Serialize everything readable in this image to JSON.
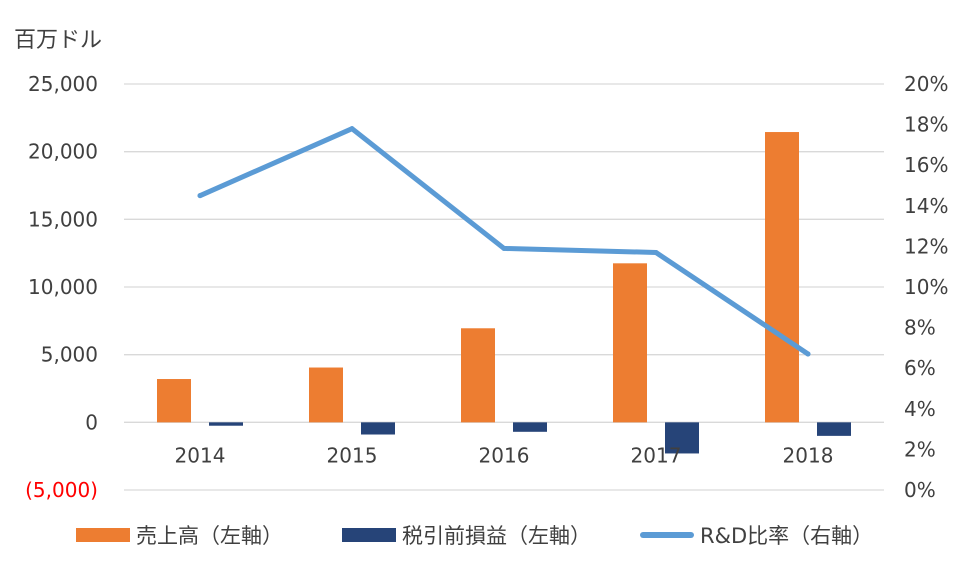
{
  "unit_label": "百万ドル",
  "colors": {
    "sales": "#ED7D31",
    "pretax": "#264478",
    "rd": "#5B9BD5",
    "grid": "#D9D9D9",
    "text": "#404040",
    "negative": "#FF0000"
  },
  "chart_data": {
    "type": "bar",
    "categories": [
      "2014",
      "2015",
      "2016",
      "2017",
      "2018"
    ],
    "series": [
      {
        "name": "売上高（左軸）",
        "type": "bar",
        "axis": "left",
        "values": [
          3200,
          4050,
          6950,
          11750,
          21450
        ]
      },
      {
        "name": "税引前損益（左軸）",
        "type": "bar",
        "axis": "left",
        "values": [
          -250,
          -900,
          -700,
          -2300,
          -1000
        ]
      },
      {
        "name": "R&D比率（右軸）",
        "type": "line",
        "axis": "right",
        "values": [
          0.145,
          0.178,
          0.119,
          0.117,
          0.067
        ]
      }
    ],
    "y_left": {
      "min": -5000,
      "max": 25000,
      "ticks": [
        -5000,
        0,
        5000,
        10000,
        15000,
        20000,
        25000
      ],
      "tick_labels": [
        "(5,000)",
        "0",
        "5,000",
        "10,000",
        "15,000",
        "20,000",
        "25,000"
      ]
    },
    "y_right": {
      "min": 0,
      "max": 0.2,
      "ticks": [
        0,
        0.02,
        0.04,
        0.06,
        0.08,
        0.1,
        0.12,
        0.14,
        0.16,
        0.18,
        0.2
      ],
      "tick_labels": [
        "0%",
        "2%",
        "4%",
        "6%",
        "8%",
        "10%",
        "12%",
        "14%",
        "16%",
        "18%",
        "20%"
      ]
    },
    "grid": true,
    "legend_position": "bottom"
  }
}
